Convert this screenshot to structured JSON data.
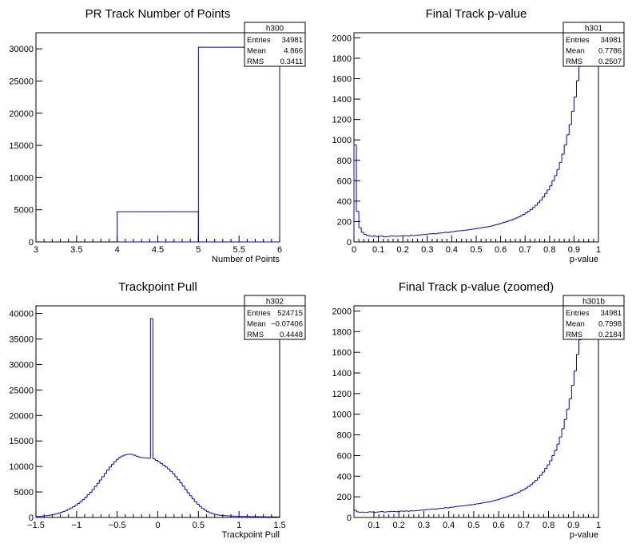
{
  "colors": {
    "histogram": "#0000cc",
    "frame": "#000000",
    "background": "#ffffff"
  },
  "chart_data": [
    {
      "type": "histogram",
      "title": "PR Track Number of Points",
      "xlabel": "Number of Points",
      "ylabel": "",
      "xlim": [
        3,
        6
      ],
      "ylim": [
        0,
        32500
      ],
      "xticks": [
        "3",
        "3.5",
        "4",
        "4.5",
        "5",
        "5.5",
        "6"
      ],
      "xtick_values": [
        3,
        3.5,
        4,
        4.5,
        5,
        5.5,
        6
      ],
      "yticks": [
        "0",
        "5000",
        "10000",
        "15000",
        "20000",
        "25000",
        "30000"
      ],
      "ytick_values": [
        0,
        5000,
        10000,
        15000,
        20000,
        25000,
        30000
      ],
      "bins": [
        {
          "x0": 4,
          "x1": 5,
          "y": 4700
        },
        {
          "x0": 5,
          "x1": 6,
          "y": 30250
        }
      ],
      "stats": {
        "name": "h300",
        "rows": [
          [
            "Entries",
            "34981"
          ],
          [
            "Mean",
            "4.866"
          ],
          [
            "RMS",
            "0.3411"
          ]
        ]
      }
    },
    {
      "type": "histogram",
      "title": "Final Track p-value",
      "xlabel": "p-value",
      "ylabel": "",
      "xlim": [
        0,
        1
      ],
      "ylim": [
        0,
        2050
      ],
      "xticks": [
        "0",
        "0.1",
        "0.2",
        "0.3",
        "0.4",
        "0.5",
        "0.6",
        "0.7",
        "0.8",
        "0.9",
        "1"
      ],
      "xtick_values": [
        0,
        0.1,
        0.2,
        0.3,
        0.4,
        0.5,
        0.6,
        0.7,
        0.8,
        0.9,
        1
      ],
      "yticks": [
        "0",
        "200",
        "400",
        "600",
        "800",
        "1000",
        "1200",
        "1400",
        "1600",
        "1800",
        "2000"
      ],
      "ytick_values": [
        0,
        200,
        400,
        600,
        800,
        1000,
        1200,
        1400,
        1600,
        1800,
        2000
      ],
      "bin_width": 0.01,
      "values": [
        950,
        300,
        140,
        95,
        75,
        65,
        60,
        55,
        60,
        52,
        55,
        58,
        50,
        52,
        55,
        60,
        57,
        55,
        58,
        60,
        60,
        62,
        58,
        65,
        62,
        65,
        68,
        70,
        72,
        75,
        78,
        80,
        82,
        80,
        85,
        88,
        90,
        95,
        92,
        98,
        100,
        105,
        108,
        110,
        112,
        115,
        118,
        122,
        125,
        128,
        132,
        135,
        140,
        145,
        148,
        152,
        158,
        165,
        170,
        178,
        185,
        192,
        200,
        208,
        215,
        225,
        235,
        245,
        258,
        270,
        285,
        300,
        318,
        338,
        360,
        385,
        410,
        440,
        475,
        510,
        550,
        600,
        650,
        710,
        780,
        860,
        950,
        1050,
        1150,
        1280,
        1420,
        1580,
        1720,
        1900,
        1990,
        1990,
        1990,
        1990,
        1990,
        1990
      ],
      "stats": {
        "name": "h301",
        "rows": [
          [
            "Entries",
            "34981"
          ],
          [
            "Mean",
            "0.7786"
          ],
          [
            "RMS",
            "0.2507"
          ]
        ]
      }
    },
    {
      "type": "histogram",
      "title": "Trackpoint Pull",
      "xlabel": "Trackpoint Pull",
      "ylabel": "",
      "xlim": [
        -1.5,
        1.5
      ],
      "ylim": [
        0,
        41500
      ],
      "xticks": [
        "−1.5",
        "−1",
        "−0.5",
        "0",
        "0.5",
        "1",
        "1.5"
      ],
      "xtick_values": [
        -1.5,
        -1,
        -0.5,
        0,
        0.5,
        1,
        1.5
      ],
      "yticks": [
        "0",
        "5000",
        "10000",
        "15000",
        "20000",
        "25000",
        "30000",
        "35000",
        "40000"
      ],
      "ytick_values": [
        0,
        5000,
        10000,
        15000,
        20000,
        25000,
        30000,
        35000,
        40000
      ],
      "bin_width": 0.03,
      "values": [
        200,
        220,
        260,
        300,
        350,
        420,
        500,
        600,
        720,
        850,
        1000,
        1180,
        1380,
        1600,
        1850,
        2120,
        2420,
        2750,
        3100,
        3500,
        3950,
        4450,
        4950,
        5500,
        6100,
        6700,
        7350,
        8000,
        8650,
        9300,
        9900,
        10450,
        10950,
        11400,
        11800,
        12050,
        12250,
        12350,
        12400,
        12350,
        12200,
        12000,
        11850,
        11750,
        11700,
        11650,
        11600,
        39000,
        11500,
        11200,
        10900,
        10600,
        10250,
        9900,
        9500,
        9050,
        8550,
        8000,
        7400,
        6800,
        6150,
        5500,
        4850,
        4250,
        3650,
        3100,
        2600,
        2150,
        1750,
        1420,
        1140,
        920,
        750,
        620,
        520,
        450,
        400,
        360,
        330,
        300,
        280,
        260,
        240,
        225,
        210,
        200,
        190,
        180,
        170,
        160,
        150,
        145,
        140,
        135,
        130,
        125,
        120,
        115,
        110,
        100
      ],
      "stats": {
        "name": "h302",
        "rows": [
          [
            "Entries",
            "524715"
          ],
          [
            "Mean",
            "−0.07406"
          ],
          [
            "RMS",
            "0.4448"
          ]
        ]
      }
    },
    {
      "type": "histogram",
      "title": "Final Track p-value (zoomed)",
      "xlabel": "p-value",
      "ylabel": "",
      "xlim": [
        0.02,
        1
      ],
      "ylim": [
        0,
        2050
      ],
      "xticks": [
        "0.1",
        "0.2",
        "0.3",
        "0.4",
        "0.5",
        "0.6",
        "0.7",
        "0.8",
        "0.9",
        "1"
      ],
      "xtick_values": [
        0.1,
        0.2,
        0.3,
        0.4,
        0.5,
        0.6,
        0.7,
        0.8,
        0.9,
        1
      ],
      "yticks": [
        "0",
        "200",
        "400",
        "600",
        "800",
        "1000",
        "1200",
        "1400",
        "1600",
        "1800",
        "2000"
      ],
      "ytick_values": [
        0,
        200,
        400,
        600,
        800,
        1000,
        1200,
        1400,
        1600,
        1800,
        2000
      ],
      "bin_width": 0.0098,
      "values": [
        70,
        55,
        50,
        52,
        48,
        50,
        55,
        53,
        50,
        52,
        55,
        58,
        52,
        55,
        57,
        60,
        58,
        56,
        60,
        62,
        60,
        63,
        60,
        65,
        63,
        66,
        68,
        70,
        72,
        75,
        78,
        80,
        82,
        80,
        85,
        88,
        90,
        95,
        92,
        98,
        100,
        105,
        108,
        110,
        112,
        115,
        118,
        122,
        125,
        128,
        132,
        135,
        140,
        145,
        148,
        152,
        158,
        165,
        170,
        178,
        185,
        192,
        200,
        208,
        215,
        225,
        235,
        245,
        258,
        270,
        285,
        300,
        318,
        338,
        360,
        385,
        410,
        440,
        475,
        510,
        550,
        600,
        650,
        710,
        780,
        860,
        950,
        1050,
        1150,
        1280,
        1420,
        1580,
        1720,
        1900,
        1990,
        1990,
        1990,
        1990,
        1990,
        1990
      ],
      "stats": {
        "name": "h301b",
        "rows": [
          [
            "Entries",
            "34981"
          ],
          [
            "Mean",
            "0.7998"
          ],
          [
            "RMS",
            "0.2184"
          ]
        ]
      }
    }
  ]
}
